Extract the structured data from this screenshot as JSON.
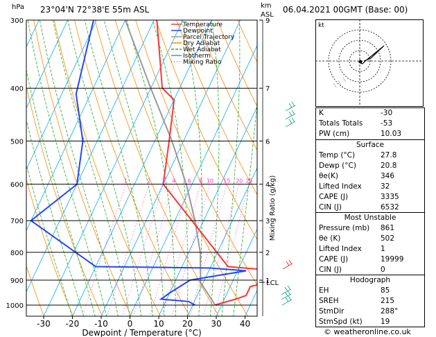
{
  "header": {
    "hpa": "hPa",
    "location": "23°04'N 72°38'E 55m ASL",
    "km": "km",
    "asl": "ASL",
    "datetime": "06.04.2021 00GMT (Base: 00)"
  },
  "chart_data": {
    "type": "skew-t",
    "xlabel": "Dewpoint / Temperature (°C)",
    "right_label": "Mixing Ratio (g/kg)",
    "x_ticks": [
      -30,
      -20,
      -10,
      0,
      10,
      20,
      30,
      40
    ],
    "pressure_ticks": [
      300,
      400,
      500,
      600,
      700,
      800,
      900,
      1000
    ],
    "km_ticks": [
      {
        "p": 300,
        "label": "9"
      },
      {
        "p": 400,
        "label": "7"
      },
      {
        "p": 500,
        "label": "6"
      },
      {
        "p": 600,
        "label": "4"
      },
      {
        "p": 700,
        "label": "3"
      },
      {
        "p": 800,
        "label": "2"
      },
      {
        "p": 900,
        "label": "1"
      }
    ],
    "lcl": {
      "p": 908,
      "label": "LCL"
    },
    "mixing_ratio_labels": [
      "1",
      "2",
      "3",
      "4",
      "6",
      "8",
      "10",
      "15",
      "20",
      "25"
    ],
    "legend": [
      "Temperature",
      "Dewpoint",
      "Parcel Trajectory",
      "Dry Adiabat",
      "Wet Adiabat",
      "Isotherm",
      "Mixing Ratio"
    ],
    "colors": {
      "temperature": "#ff3333",
      "dewpoint": "#2244ff",
      "parcel": "#999999",
      "dry_adiabat": "#ff8800",
      "wet_adiabat": "#22aa22",
      "isotherm": "#00aaff",
      "mixing_ratio": "#ff33cc"
    },
    "temperature": [
      {
        "p": 1000,
        "t": 27.8
      },
      {
        "p": 990,
        "t": 30
      },
      {
        "p": 975,
        "t": 34
      },
      {
        "p": 960,
        "t": 37
      },
      {
        "p": 925,
        "t": 37
      },
      {
        "p": 915,
        "t": 40
      },
      {
        "p": 860,
        "t": 38
      },
      {
        "p": 850,
        "t": 26
      },
      {
        "p": 600,
        "t": -10
      },
      {
        "p": 500,
        "t": -15
      },
      {
        "p": 420,
        "t": -20
      },
      {
        "p": 400,
        "t": -26
      },
      {
        "p": 300,
        "t": -39
      }
    ],
    "dewpoint": [
      {
        "p": 1000,
        "t": 20.8
      },
      {
        "p": 985,
        "t": 18
      },
      {
        "p": 975,
        "t": 8
      },
      {
        "p": 950,
        "t": 10
      },
      {
        "p": 900,
        "t": 15
      },
      {
        "p": 865,
        "t": 33
      },
      {
        "p": 855,
        "t": 20
      },
      {
        "p": 850,
        "t": -20
      },
      {
        "p": 700,
        "t": -50
      },
      {
        "p": 600,
        "t": -40
      },
      {
        "p": 500,
        "t": -45
      },
      {
        "p": 410,
        "t": -55
      },
      {
        "p": 300,
        "t": -61
      }
    ],
    "parcel": [
      {
        "p": 1000,
        "t": 27.8
      },
      {
        "p": 908,
        "t": 19
      },
      {
        "p": 800,
        "t": 14
      },
      {
        "p": 700,
        "t": 7
      },
      {
        "p": 600,
        "t": -2
      },
      {
        "p": 500,
        "t": -14
      },
      {
        "p": 400,
        "t": -30
      },
      {
        "p": 300,
        "t": -50
      }
    ]
  },
  "hodograph": {
    "unit_label": "kt"
  },
  "indices": [
    {
      "key": "K",
      "value": "-30"
    },
    {
      "key": "Totals Totals",
      "value": "-53"
    },
    {
      "key": "PW (cm)",
      "value": "10.03"
    }
  ],
  "surface": {
    "title": "Surface",
    "rows": [
      {
        "key": "Temp (°C)",
        "value": "27.8"
      },
      {
        "key": "Dewp (°C)",
        "value": "20.8"
      },
      {
        "key": "θe(K)",
        "value": "346"
      },
      {
        "key": "Lifted Index",
        "value": "32"
      },
      {
        "key": "CAPE (J)",
        "value": "3335"
      },
      {
        "key": "CIN (J)",
        "value": "6532"
      }
    ]
  },
  "most_unstable": {
    "title": "Most Unstable",
    "rows": [
      {
        "key": "Pressure (mb)",
        "value": "861"
      },
      {
        "key": "θe (K)",
        "value": "502"
      },
      {
        "key": "Lifted Index",
        "value": "1"
      },
      {
        "key": "CAPE (J)",
        "value": "19999"
      },
      {
        "key": "CIN (J)",
        "value": "0"
      }
    ]
  },
  "hodograph_table": {
    "title": "Hodograph",
    "rows": [
      {
        "key": "EH",
        "value": "85"
      },
      {
        "key": "SREH",
        "value": "215"
      },
      {
        "key": "StmDir",
        "value": "288°"
      },
      {
        "key": "StmSpd (kt)",
        "value": "19"
      }
    ]
  },
  "footer": {
    "copyright": "© weatheronline.co.uk"
  }
}
